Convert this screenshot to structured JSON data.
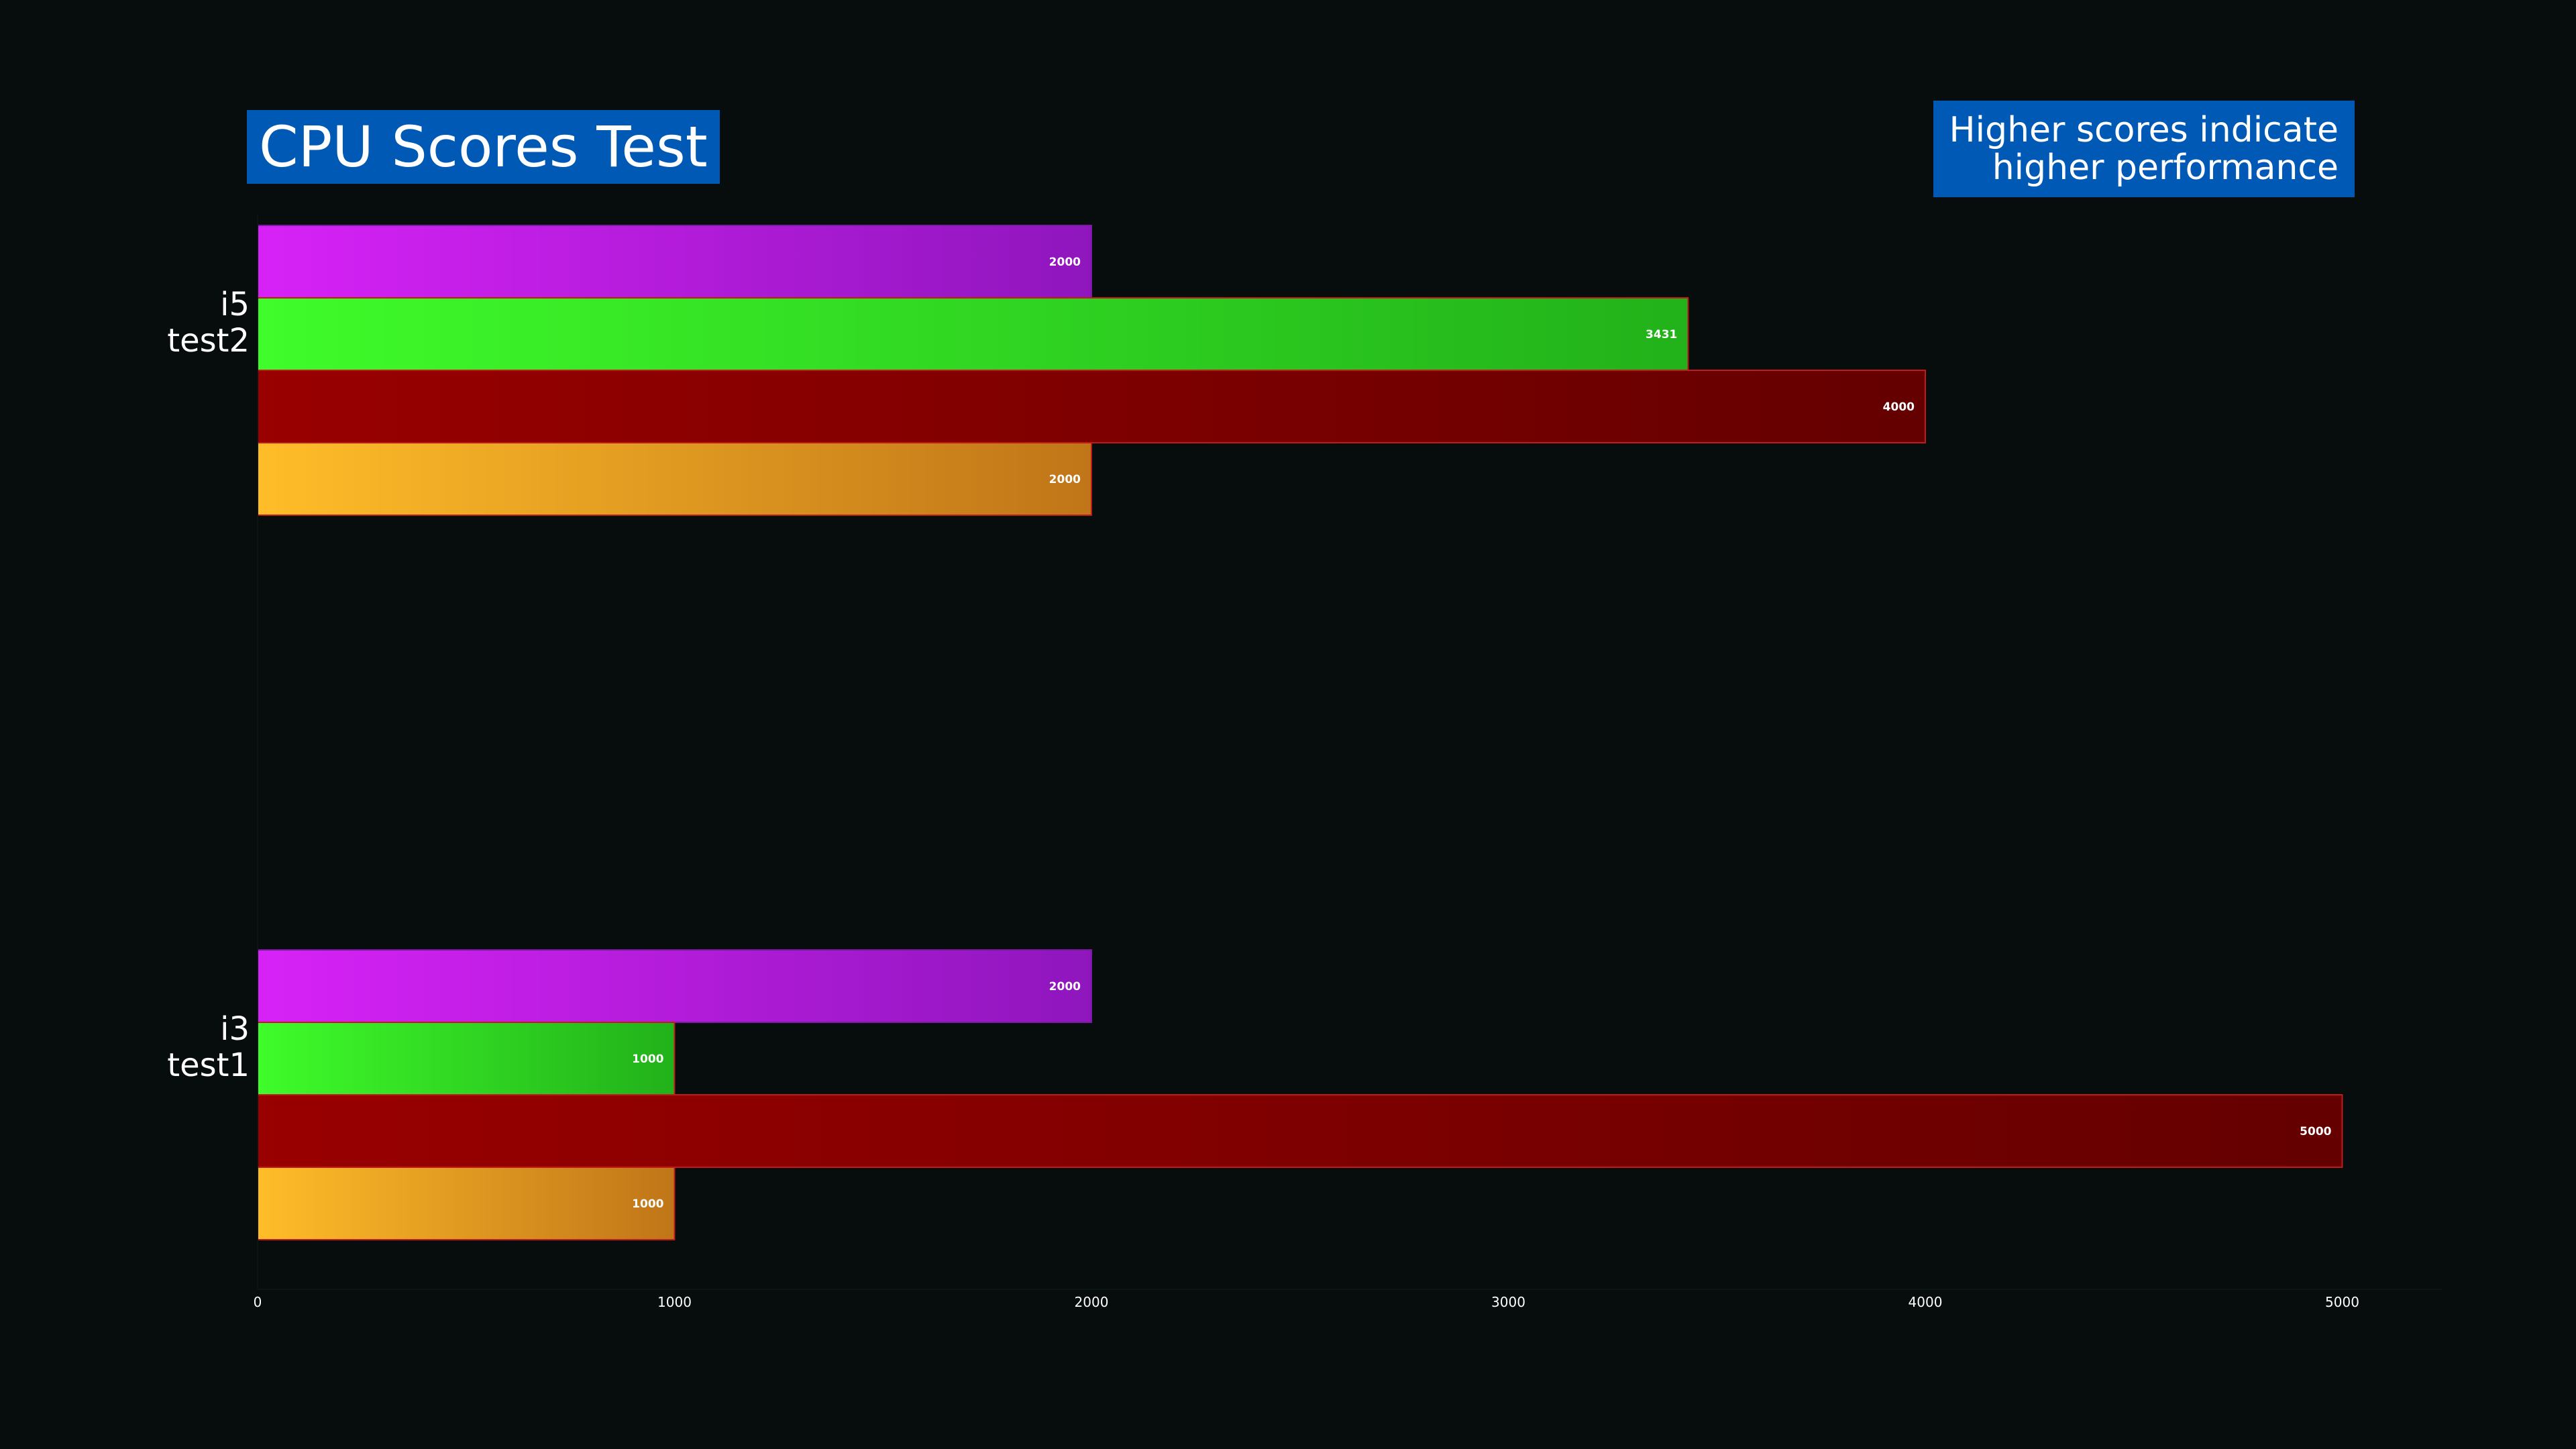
{
  "title": "CPU Scores Test",
  "annotation": [
    "Higher scores indicate",
    "higher performance"
  ],
  "colors": {
    "background": "#070c0d",
    "label_box": "#0059b5",
    "text": "#ffffff"
  },
  "chart_data": {
    "type": "bar",
    "orientation": "horizontal",
    "title": "CPU Scores Test",
    "xlabel": "",
    "ylabel": "",
    "xlim": [
      0,
      5250
    ],
    "xticks": [
      0,
      1000,
      2000,
      3000,
      4000,
      5000
    ],
    "grid": false,
    "legend": "none",
    "categories": [
      [
        "i5",
        "test2"
      ],
      [
        "i3",
        "test1"
      ]
    ],
    "series": [
      {
        "values": [
          2000,
          2000
        ],
        "gradient": [
          "#d722f7",
          "#8f16bd"
        ],
        "edge": "#7a1aa0"
      },
      {
        "values": [
          3431,
          1000
        ],
        "gradient": [
          "#3ffc2a",
          "#22b11a"
        ],
        "edge": "#c01a1a"
      },
      {
        "values": [
          4000,
          5000
        ],
        "gradient": [
          "#990000",
          "#640000"
        ],
        "edge": "#c01a1a"
      },
      {
        "values": [
          2000,
          1000
        ],
        "gradient": [
          "#ffbd29",
          "#c07518"
        ],
        "edge": "#c01a1a"
      }
    ]
  }
}
